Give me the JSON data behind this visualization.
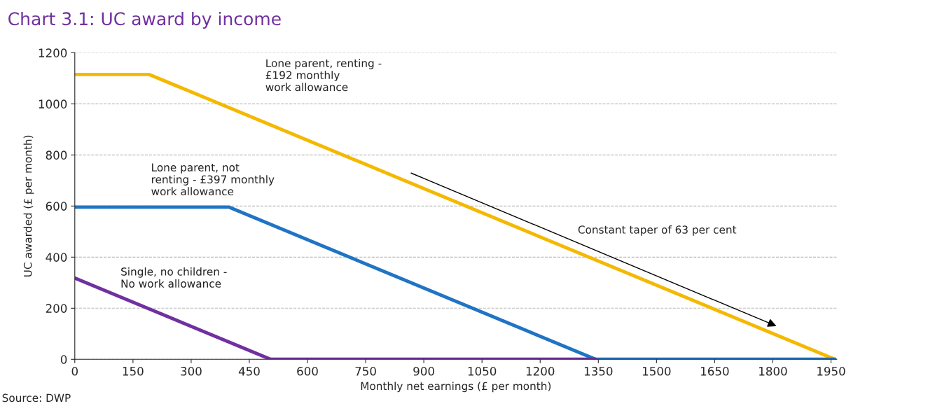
{
  "chart_data": {
    "type": "line",
    "title": "Chart 3.1: UC award by income",
    "xlabel": "Monthly net earnings (£ per month)",
    "ylabel": "UC awarded (£ per month)",
    "series": [
      {
        "name": "Lone parent, renting -\n£192 monthly\nwork allowance",
        "color": "#f5b800",
        "x": [
          0,
          192,
          1960
        ],
        "values": [
          1115,
          1115,
          0
        ]
      },
      {
        "name": "Lone parent, not\nrenting - £397 monthly\nwork allowance",
        "color": "#1f74c4",
        "x": [
          0,
          397,
          1343,
          1960
        ],
        "values": [
          596,
          596,
          0,
          0
        ]
      },
      {
        "name": "Single, no children -\nNo work allowance",
        "color": "#7030a0",
        "x": [
          0,
          505,
          1343
        ],
        "values": [
          318,
          0,
          0
        ]
      }
    ],
    "xlim": [
      0,
      1965
    ],
    "xticks": [
      0,
      150,
      300,
      450,
      600,
      750,
      900,
      1050,
      1200,
      1350,
      1500,
      1650,
      1800,
      1950
    ],
    "ylim": [
      0,
      1200
    ],
    "yticks": [
      0,
      200,
      400,
      600,
      800,
      1000,
      1200
    ],
    "grid": "y",
    "legend": false,
    "line_style": "solid",
    "marker": "none",
    "annotations": [
      "Constant taper of 63 per cent",
      "Source: DWP"
    ]
  }
}
